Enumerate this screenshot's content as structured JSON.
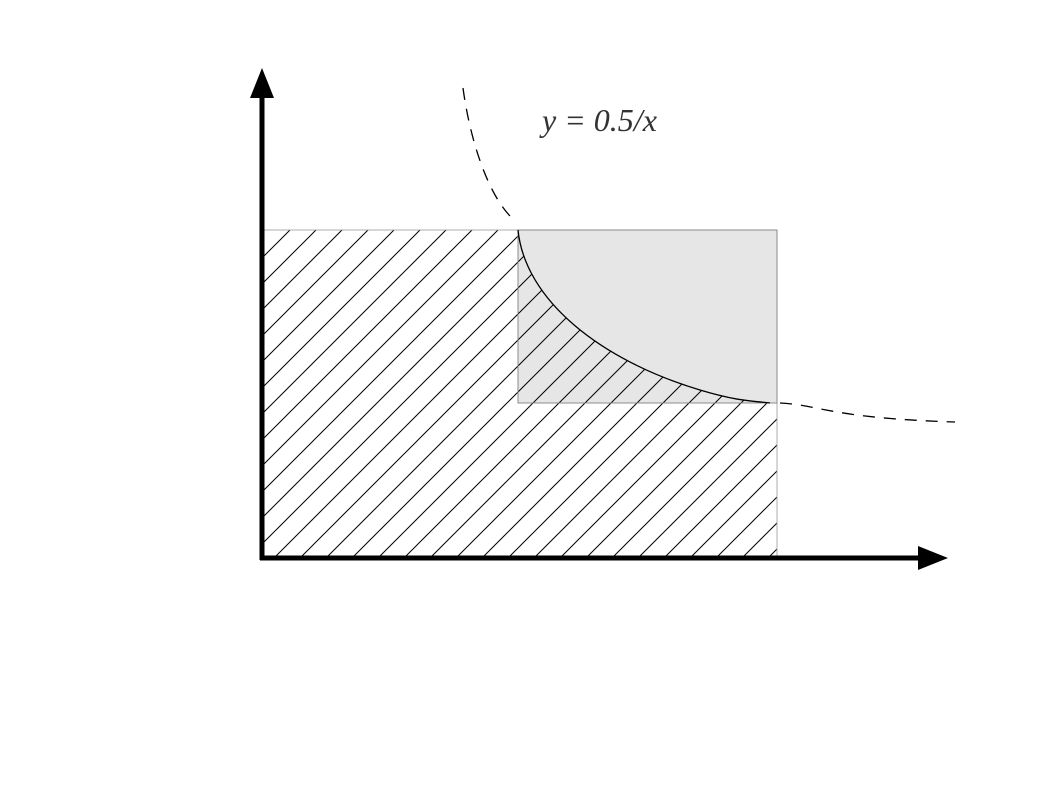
{
  "label": "y = 0.5/x"
}
